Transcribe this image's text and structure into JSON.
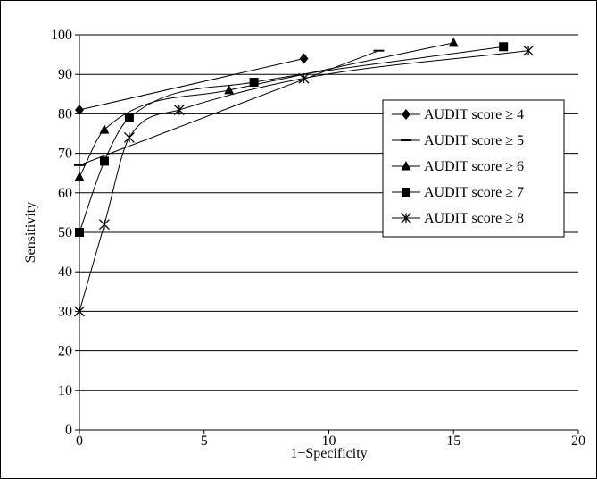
{
  "chart_data": {
    "type": "line",
    "title": "",
    "xlabel": "1−Specificity",
    "ylabel": "Sensitivity",
    "xlim": [
      0,
      20
    ],
    "ylim": [
      0,
      100
    ],
    "xticks": [
      0,
      5,
      10,
      15,
      20
    ],
    "yticks": [
      0,
      10,
      20,
      30,
      40,
      50,
      60,
      70,
      80,
      90,
      100
    ],
    "grid": "horizontal",
    "legend_position": "right",
    "series": [
      {
        "name": "AUDIT score ≥ 4",
        "marker": "diamond",
        "x": [
          0,
          9
        ],
        "y": [
          81,
          94
        ]
      },
      {
        "name": "AUDIT score ≥ 5",
        "marker": "dash",
        "x": [
          0,
          12
        ],
        "y": [
          67,
          96
        ]
      },
      {
        "name": "AUDIT score ≥ 6",
        "marker": "triangle",
        "x": [
          0,
          1,
          6,
          15
        ],
        "y": [
          64,
          76,
          86,
          98
        ]
      },
      {
        "name": "AUDIT score ≥ 7",
        "marker": "square",
        "x": [
          0,
          1,
          2,
          7,
          17
        ],
        "y": [
          50,
          68,
          79,
          88,
          97
        ]
      },
      {
        "name": "AUDIT score ≥ 8",
        "marker": "asterisk",
        "x": [
          0,
          1,
          2,
          4,
          9,
          18
        ],
        "y": [
          30,
          52,
          74,
          81,
          89,
          96
        ]
      }
    ]
  }
}
